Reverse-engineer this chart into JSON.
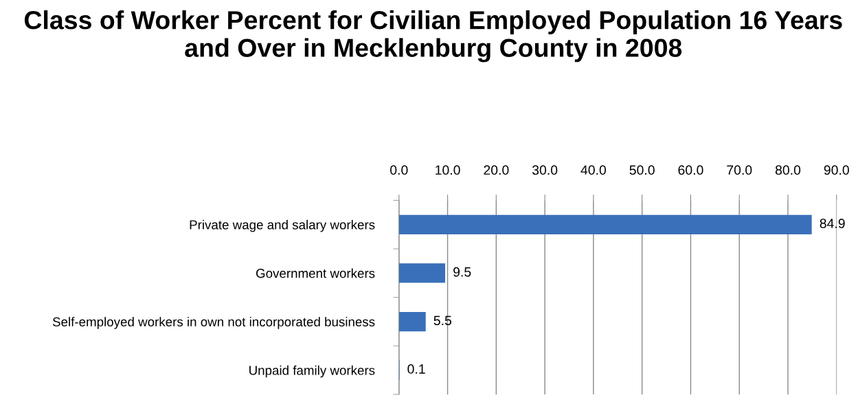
{
  "chart_data": {
    "type": "bar",
    "orientation": "horizontal",
    "title": "Class of Worker Percent for Civilian Employed Population 16 Years and Over in Mecklenburg County in 2008",
    "categories": [
      "Private wage and salary workers",
      "Government workers",
      "Self-employed workers in own not incorporated business",
      "Unpaid family workers"
    ],
    "values": [
      84.9,
      9.5,
      5.5,
      0.1
    ],
    "color": "#3a6fba",
    "xlim": [
      0,
      90
    ],
    "xticks": [
      {
        "value": 0,
        "label": "0.0"
      },
      {
        "value": 10,
        "label": "10.0"
      },
      {
        "value": 20,
        "label": "20.0"
      },
      {
        "value": 30,
        "label": "30.0"
      },
      {
        "value": 40,
        "label": "40.0"
      },
      {
        "value": 50,
        "label": "50.0"
      },
      {
        "value": 60,
        "label": "60.0"
      },
      {
        "value": 70,
        "label": "70.0"
      },
      {
        "value": 80,
        "label": "80.0"
      },
      {
        "value": 90,
        "label": "90.0"
      }
    ],
    "grid": "x",
    "data_labels": true
  }
}
